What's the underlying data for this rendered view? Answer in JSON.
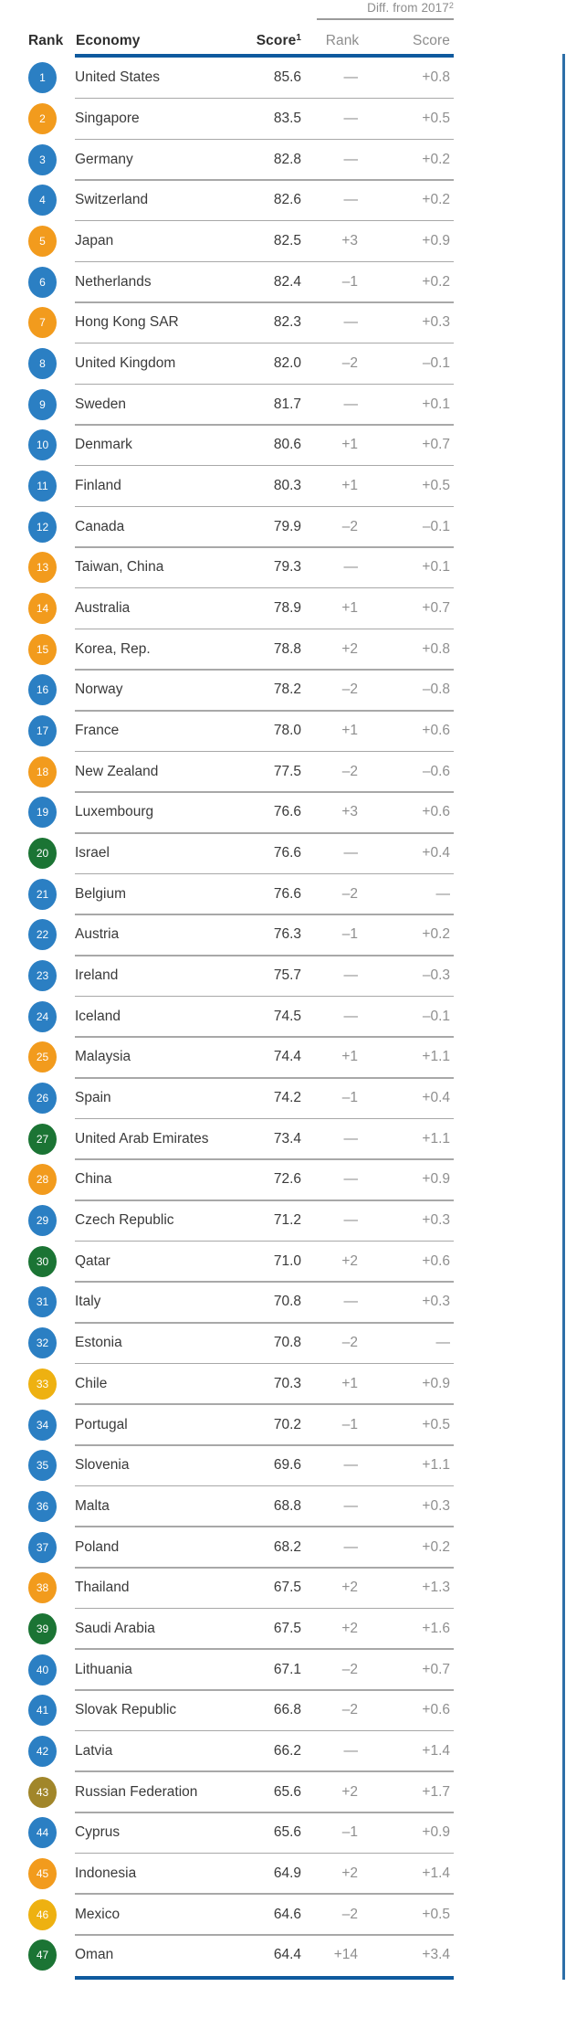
{
  "table": {
    "header": {
      "rank": "Rank",
      "economy": "Economy",
      "score": "Score",
      "score_sup": "1",
      "diff_group": "Diff. from 2017",
      "diff_group_sup": "2",
      "diff_rank": "Rank",
      "diff_score": "Score"
    },
    "colors": {
      "blue": "#2b7fc3",
      "orange": "#f29b1d",
      "green": "#1b7434",
      "yellow": "#eeb111",
      "olive": "#a1862a",
      "accent_line": "#0f5a9e"
    },
    "rows": [
      {
        "rank": "1",
        "economy": "United States",
        "score": "85.6",
        "diff_rank": "—",
        "diff_score": "+0.8",
        "color": "blue"
      },
      {
        "rank": "2",
        "economy": "Singapore",
        "score": "83.5",
        "diff_rank": "—",
        "diff_score": "+0.5",
        "color": "orange"
      },
      {
        "rank": "3",
        "economy": "Germany",
        "score": "82.8",
        "diff_rank": "—",
        "diff_score": "+0.2",
        "color": "blue"
      },
      {
        "rank": "4",
        "economy": "Switzerland",
        "score": "82.6",
        "diff_rank": "—",
        "diff_score": "+0.2",
        "color": "blue"
      },
      {
        "rank": "5",
        "economy": "Japan",
        "score": "82.5",
        "diff_rank": "+3",
        "diff_score": "+0.9",
        "color": "orange"
      },
      {
        "rank": "6",
        "economy": "Netherlands",
        "score": "82.4",
        "diff_rank": "–1",
        "diff_score": "+0.2",
        "color": "blue"
      },
      {
        "rank": "7",
        "economy": "Hong Kong SAR",
        "score": "82.3",
        "diff_rank": "—",
        "diff_score": "+0.3",
        "color": "orange"
      },
      {
        "rank": "8",
        "economy": "United Kingdom",
        "score": "82.0",
        "diff_rank": "–2",
        "diff_score": "–0.1",
        "color": "blue"
      },
      {
        "rank": "9",
        "economy": "Sweden",
        "score": "81.7",
        "diff_rank": "—",
        "diff_score": "+0.1",
        "color": "blue"
      },
      {
        "rank": "10",
        "economy": "Denmark",
        "score": "80.6",
        "diff_rank": "+1",
        "diff_score": "+0.7",
        "color": "blue"
      },
      {
        "rank": "11",
        "economy": "Finland",
        "score": "80.3",
        "diff_rank": "+1",
        "diff_score": "+0.5",
        "color": "blue"
      },
      {
        "rank": "12",
        "economy": "Canada",
        "score": "79.9",
        "diff_rank": "–2",
        "diff_score": "–0.1",
        "color": "blue"
      },
      {
        "rank": "13",
        "economy": "Taiwan, China",
        "score": "79.3",
        "diff_rank": "—",
        "diff_score": "+0.1",
        "color": "orange"
      },
      {
        "rank": "14",
        "economy": "Australia",
        "score": "78.9",
        "diff_rank": "+1",
        "diff_score": "+0.7",
        "color": "orange"
      },
      {
        "rank": "15",
        "economy": "Korea, Rep.",
        "score": "78.8",
        "diff_rank": "+2",
        "diff_score": "+0.8",
        "color": "orange"
      },
      {
        "rank": "16",
        "economy": "Norway",
        "score": "78.2",
        "diff_rank": "–2",
        "diff_score": "–0.8",
        "color": "blue"
      },
      {
        "rank": "17",
        "economy": "France",
        "score": "78.0",
        "diff_rank": "+1",
        "diff_score": "+0.6",
        "color": "blue"
      },
      {
        "rank": "18",
        "economy": "New Zealand",
        "score": "77.5",
        "diff_rank": "–2",
        "diff_score": "–0.6",
        "color": "orange"
      },
      {
        "rank": "19",
        "economy": "Luxembourg",
        "score": "76.6",
        "diff_rank": "+3",
        "diff_score": "+0.6",
        "color": "blue"
      },
      {
        "rank": "20",
        "economy": "Israel",
        "score": "76.6",
        "diff_rank": "—",
        "diff_score": "+0.4",
        "color": "green"
      },
      {
        "rank": "21",
        "economy": "Belgium",
        "score": "76.6",
        "diff_rank": "–2",
        "diff_score": "—",
        "color": "blue"
      },
      {
        "rank": "22",
        "economy": "Austria",
        "score": "76.3",
        "diff_rank": "–1",
        "diff_score": "+0.2",
        "color": "blue"
      },
      {
        "rank": "23",
        "economy": "Ireland",
        "score": "75.7",
        "diff_rank": "—",
        "diff_score": "–0.3",
        "color": "blue"
      },
      {
        "rank": "24",
        "economy": "Iceland",
        "score": "74.5",
        "diff_rank": "—",
        "diff_score": "–0.1",
        "color": "blue"
      },
      {
        "rank": "25",
        "economy": "Malaysia",
        "score": "74.4",
        "diff_rank": "+1",
        "diff_score": "+1.1",
        "color": "orange"
      },
      {
        "rank": "26",
        "economy": "Spain",
        "score": "74.2",
        "diff_rank": "–1",
        "diff_score": "+0.4",
        "color": "blue"
      },
      {
        "rank": "27",
        "economy": "United Arab Emirates",
        "score": "73.4",
        "diff_rank": "—",
        "diff_score": "+1.1",
        "color": "green"
      },
      {
        "rank": "28",
        "economy": "China",
        "score": "72.6",
        "diff_rank": "—",
        "diff_score": "+0.9",
        "color": "orange"
      },
      {
        "rank": "29",
        "economy": "Czech Republic",
        "score": "71.2",
        "diff_rank": "—",
        "diff_score": "+0.3",
        "color": "blue"
      },
      {
        "rank": "30",
        "economy": "Qatar",
        "score": "71.0",
        "diff_rank": "+2",
        "diff_score": "+0.6",
        "color": "green"
      },
      {
        "rank": "31",
        "economy": "Italy",
        "score": "70.8",
        "diff_rank": "—",
        "diff_score": "+0.3",
        "color": "blue"
      },
      {
        "rank": "32",
        "economy": "Estonia",
        "score": "70.8",
        "diff_rank": "–2",
        "diff_score": "—",
        "color": "blue"
      },
      {
        "rank": "33",
        "economy": "Chile",
        "score": "70.3",
        "diff_rank": "+1",
        "diff_score": "+0.9",
        "color": "yellow"
      },
      {
        "rank": "34",
        "economy": "Portugal",
        "score": "70.2",
        "diff_rank": "–1",
        "diff_score": "+0.5",
        "color": "blue"
      },
      {
        "rank": "35",
        "economy": "Slovenia",
        "score": "69.6",
        "diff_rank": "—",
        "diff_score": "+1.1",
        "color": "blue"
      },
      {
        "rank": "36",
        "economy": "Malta",
        "score": "68.8",
        "diff_rank": "—",
        "diff_score": "+0.3",
        "color": "blue"
      },
      {
        "rank": "37",
        "economy": "Poland",
        "score": "68.2",
        "diff_rank": "—",
        "diff_score": "+0.2",
        "color": "blue"
      },
      {
        "rank": "38",
        "economy": "Thailand",
        "score": "67.5",
        "diff_rank": "+2",
        "diff_score": "+1.3",
        "color": "orange"
      },
      {
        "rank": "39",
        "economy": "Saudi Arabia",
        "score": "67.5",
        "diff_rank": "+2",
        "diff_score": "+1.6",
        "color": "green"
      },
      {
        "rank": "40",
        "economy": "Lithuania",
        "score": "67.1",
        "diff_rank": "–2",
        "diff_score": "+0.7",
        "color": "blue"
      },
      {
        "rank": "41",
        "economy": "Slovak Republic",
        "score": "66.8",
        "diff_rank": "–2",
        "diff_score": "+0.6",
        "color": "blue"
      },
      {
        "rank": "42",
        "economy": "Latvia",
        "score": "66.2",
        "diff_rank": "—",
        "diff_score": "+1.4",
        "color": "blue"
      },
      {
        "rank": "43",
        "economy": "Russian Federation",
        "score": "65.6",
        "diff_rank": "+2",
        "diff_score": "+1.7",
        "color": "olive"
      },
      {
        "rank": "44",
        "economy": "Cyprus",
        "score": "65.6",
        "diff_rank": "–1",
        "diff_score": "+0.9",
        "color": "blue"
      },
      {
        "rank": "45",
        "economy": "Indonesia",
        "score": "64.9",
        "diff_rank": "+2",
        "diff_score": "+1.4",
        "color": "orange"
      },
      {
        "rank": "46",
        "economy": "Mexico",
        "score": "64.6",
        "diff_rank": "–2",
        "diff_score": "+0.5",
        "color": "yellow"
      },
      {
        "rank": "47",
        "economy": "Oman",
        "score": "64.4",
        "diff_rank": "+14",
        "diff_score": "+3.4",
        "color": "green"
      }
    ]
  }
}
